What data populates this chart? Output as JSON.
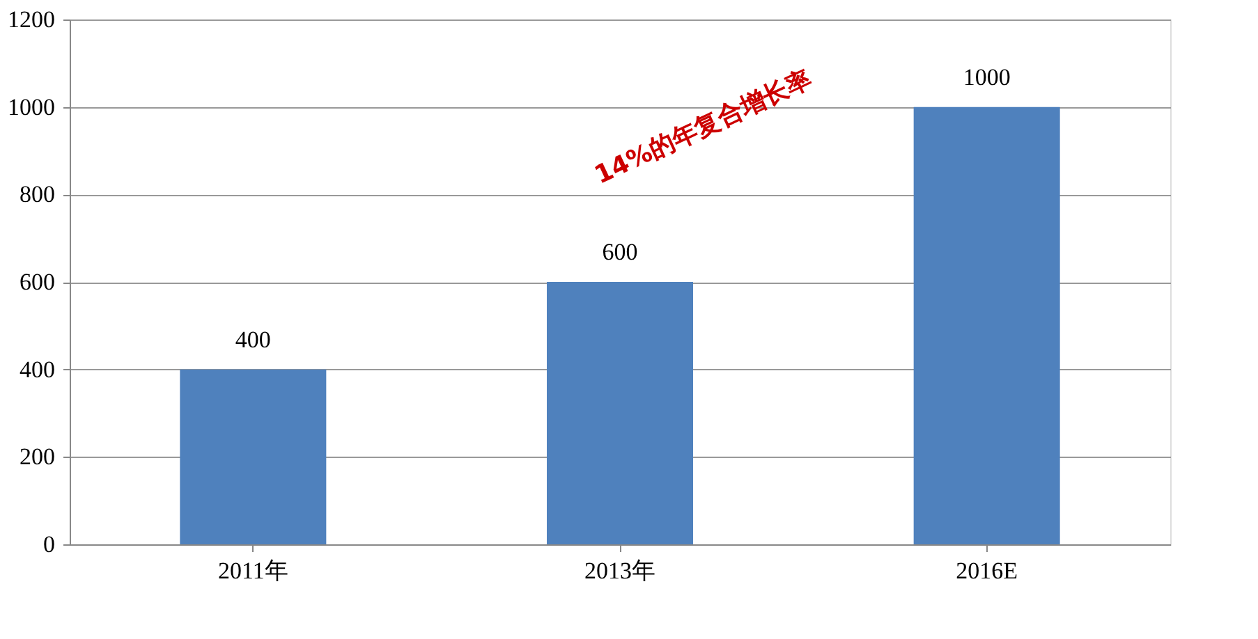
{
  "chart_data": {
    "type": "bar",
    "categories": [
      "2011年",
      "2013年",
      "2016E"
    ],
    "values": [
      400,
      600,
      1000
    ],
    "color": "#4f81bd",
    "ylim": [
      0,
      1200
    ],
    "yticks": [
      0,
      200,
      400,
      600,
      800,
      1000,
      1200
    ],
    "grid": "y",
    "data_labels": true,
    "annotations": [
      "14%的年复合增长率"
    ]
  }
}
